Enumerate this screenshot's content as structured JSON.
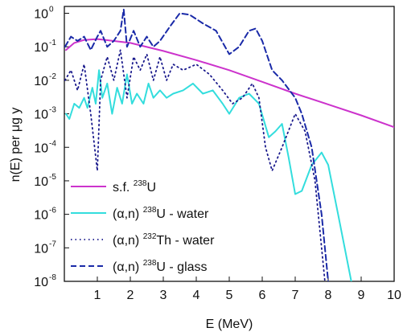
{
  "chart_data": {
    "type": "line",
    "log_y": true,
    "legend": "lower left",
    "xlabel": "E (MeV)",
    "ylabel": "n(E) per μg y",
    "xlim": [
      0,
      10
    ],
    "xticks": [
      1,
      2,
      3,
      4,
      5,
      6,
      7,
      8,
      9,
      10
    ],
    "ylim": [
      1e-08,
      1.6
    ],
    "yticks": [
      {
        "value": 1e-08,
        "label": "10",
        "sup": "-8"
      },
      {
        "value": 1e-07,
        "label": "10",
        "sup": "-7"
      },
      {
        "value": 1e-06,
        "label": "10",
        "sup": "-6"
      },
      {
        "value": 1e-05,
        "label": "10",
        "sup": "-5"
      },
      {
        "value": 0.0001,
        "label": "10",
        "sup": "-4"
      },
      {
        "value": 0.001,
        "label": "10",
        "sup": "-3"
      },
      {
        "value": 0.01,
        "label": "10",
        "sup": "-2"
      },
      {
        "value": 0.1,
        "label": "10",
        "sup": "-1"
      },
      {
        "value": 1,
        "label": "10",
        "sup": "0"
      }
    ],
    "series": [
      {
        "name": [
          {
            "text": "s.f. "
          },
          {
            "text": "238",
            "sup": true
          },
          {
            "text": "U"
          }
        ],
        "color": "#cc33cc",
        "dash": "solid",
        "width": 2,
        "x": [
          0.05,
          0.3,
          0.6,
          1,
          2,
          3,
          4,
          5,
          6,
          7,
          8,
          9,
          10
        ],
        "values": [
          0.08,
          0.13,
          0.16,
          0.17,
          0.13,
          0.075,
          0.04,
          0.02,
          0.009,
          0.004,
          0.0019,
          0.0009,
          0.0004
        ]
      },
      {
        "name": [
          {
            "text": "(α,n) "
          },
          {
            "text": "238",
            "sup": true
          },
          {
            "text": "U - water"
          }
        ],
        "color": "#33dddd",
        "dash": "solid",
        "width": 2,
        "x": [
          0.05,
          0.15,
          0.3,
          0.45,
          0.6,
          0.7,
          0.85,
          0.95,
          1.05,
          1.15,
          1.3,
          1.45,
          1.6,
          1.75,
          1.9,
          2.05,
          2.2,
          2.4,
          2.55,
          2.7,
          2.9,
          3.1,
          3.3,
          3.6,
          3.9,
          4.2,
          4.5,
          4.8,
          5.0,
          5.3,
          5.6,
          5.9,
          6.2,
          6.4,
          6.6,
          6.8,
          7.0,
          7.2,
          7.5,
          7.8,
          8.0,
          8.3,
          8.7
        ],
        "values": [
          0.001,
          0.0007,
          0.002,
          0.0015,
          0.003,
          0.0015,
          0.006,
          0.002,
          0.02,
          0.003,
          0.008,
          0.001,
          0.006,
          0.002,
          0.015,
          0.002,
          0.004,
          0.002,
          0.008,
          0.003,
          0.005,
          0.003,
          0.004,
          0.005,
          0.008,
          0.004,
          0.005,
          0.002,
          0.001,
          0.003,
          0.004,
          0.002,
          0.0002,
          0.0003,
          0.0005,
          5e-05,
          4e-06,
          5e-06,
          3e-05,
          7e-05,
          3e-05,
          1e-06,
          1e-08
        ]
      },
      {
        "name": [
          {
            "text": "(α,n) "
          },
          {
            "text": "232",
            "sup": true
          },
          {
            "text": "Th - water"
          }
        ],
        "color": "#1a1a8c",
        "dash": "dotted",
        "width": 1.8,
        "x": [
          0.02,
          0.2,
          0.4,
          0.6,
          0.8,
          1.0,
          1.1,
          1.3,
          1.5,
          1.7,
          1.9,
          2.1,
          2.3,
          2.5,
          2.7,
          2.9,
          3.1,
          3.3,
          3.6,
          4.0,
          4.4,
          4.8,
          5.1,
          5.4,
          5.7,
          5.9,
          6.1,
          6.3,
          6.6,
          7.0,
          7.3,
          7.6,
          7.9
        ],
        "values": [
          0.01,
          0.02,
          0.005,
          0.03,
          0.001,
          2e-05,
          0.01,
          0.05,
          0.01,
          0.08,
          0.003,
          0.05,
          0.02,
          0.06,
          0.01,
          0.05,
          0.01,
          0.03,
          0.02,
          0.03,
          0.015,
          0.005,
          0.002,
          0.003,
          0.008,
          0.003,
          0.0001,
          2e-05,
          0.0001,
          0.001,
          0.0003,
          1e-05,
          1e-08
        ]
      },
      {
        "name": [
          {
            "text": "(α,n) "
          },
          {
            "text": "238",
            "sup": true
          },
          {
            "text": "U - glass"
          }
        ],
        "color": "#1a2aa8",
        "dash": "dashed",
        "width": 2,
        "x": [
          0.02,
          0.2,
          0.4,
          0.6,
          0.8,
          1.0,
          1.1,
          1.3,
          1.5,
          1.7,
          1.8,
          1.9,
          2.1,
          2.3,
          2.5,
          2.7,
          2.9,
          3.2,
          3.5,
          3.8,
          4.2,
          4.6,
          5.0,
          5.3,
          5.6,
          5.8,
          6.0,
          6.3,
          6.6,
          7.0,
          7.2,
          7.5,
          7.8,
          8.0
        ],
        "values": [
          0.1,
          0.2,
          0.15,
          0.2,
          0.08,
          0.2,
          0.3,
          0.1,
          0.15,
          0.3,
          1.3,
          0.1,
          0.3,
          0.1,
          0.2,
          0.1,
          0.15,
          0.4,
          1.0,
          0.9,
          0.5,
          0.3,
          0.06,
          0.1,
          0.3,
          0.35,
          0.15,
          0.02,
          0.01,
          0.003,
          0.001,
          0.0001,
          1e-06,
          1e-08
        ]
      }
    ]
  }
}
